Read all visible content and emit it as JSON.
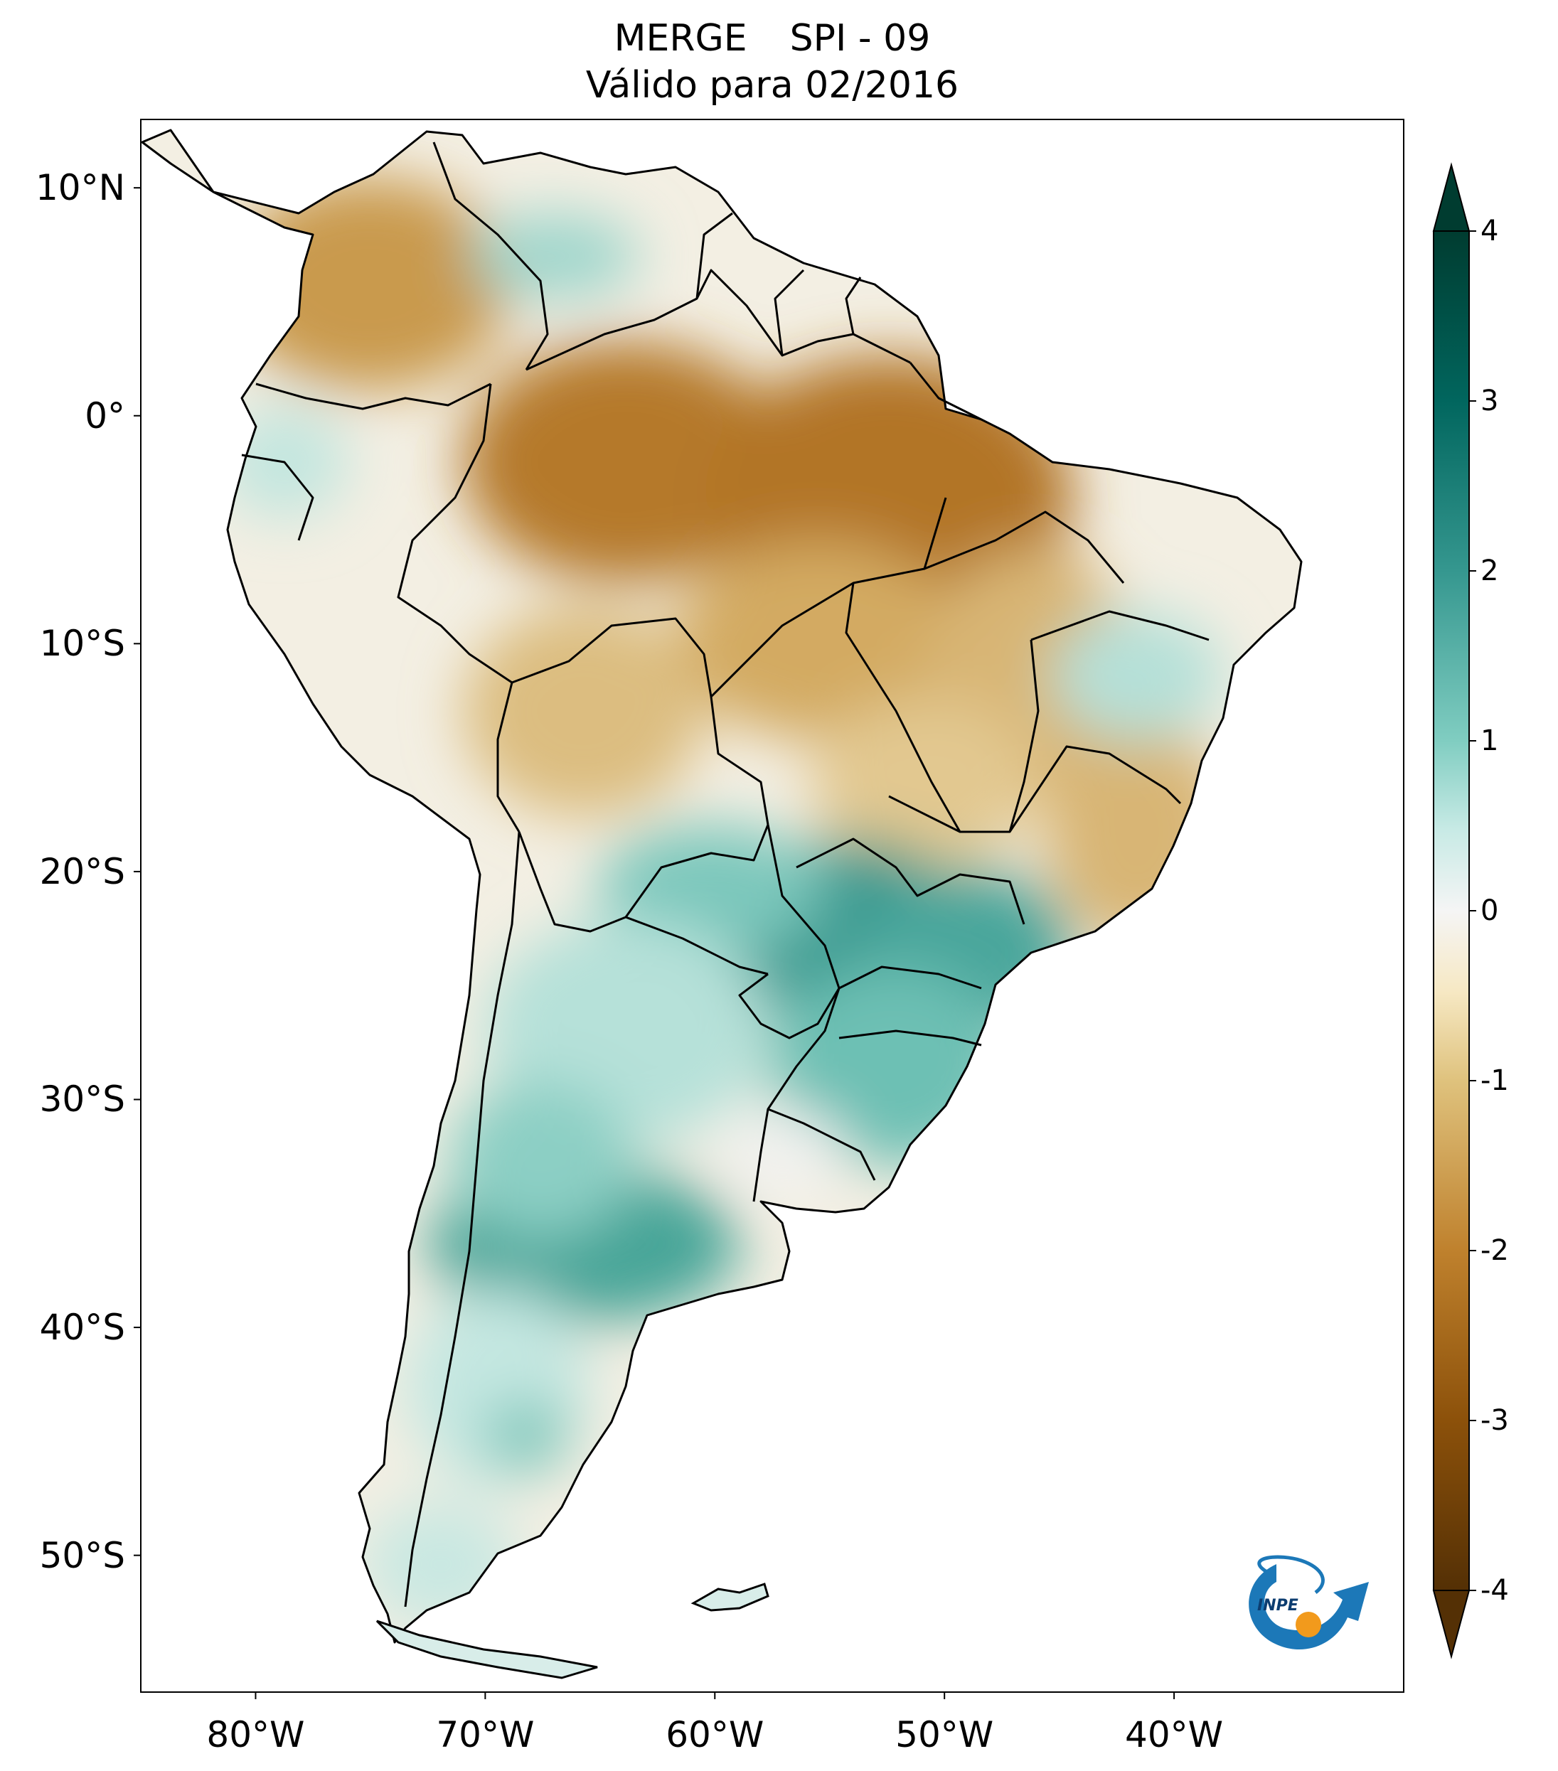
{
  "figure": {
    "title_line1_a": "MERGE",
    "title_line1_b": "SPI - 09",
    "title_line2": "Válido para 02/2016"
  },
  "map": {
    "region": "South America",
    "variable": "SPI - 09",
    "lon_range": [
      -85,
      -30
    ],
    "lat_range": [
      -56,
      13
    ],
    "lat_ticks": [
      {
        "value": 10,
        "label": "10°N"
      },
      {
        "value": 0,
        "label": "0°"
      },
      {
        "value": -10,
        "label": "10°S"
      },
      {
        "value": -20,
        "label": "20°S"
      },
      {
        "value": -30,
        "label": "30°S"
      },
      {
        "value": -40,
        "label": "40°S"
      },
      {
        "value": -50,
        "label": "50°S"
      }
    ],
    "lon_ticks": [
      {
        "value": -80,
        "label": "80°W"
      },
      {
        "value": -70,
        "label": "70°W"
      },
      {
        "value": -60,
        "label": "60°W"
      },
      {
        "value": -50,
        "label": "50°W"
      },
      {
        "value": -40,
        "label": "40°W"
      }
    ]
  },
  "colorbar": {
    "range": [
      -4,
      4
    ],
    "ticks": [
      {
        "value": 4,
        "label": "4"
      },
      {
        "value": 3,
        "label": "3"
      },
      {
        "value": 2,
        "label": "2"
      },
      {
        "value": 1,
        "label": "1"
      },
      {
        "value": 0,
        "label": "0"
      },
      {
        "value": -1,
        "label": "-1"
      },
      {
        "value": -2,
        "label": "-2"
      },
      {
        "value": -3,
        "label": "-3"
      },
      {
        "value": -4,
        "label": "-4"
      }
    ],
    "colors": {
      "wet_max": "#003c30",
      "wet_strong": "#01665e",
      "wet_mid": "#35978f",
      "wet_light": "#80cdc1",
      "wet_pale": "#c7eae5",
      "neutral": "#f5f5f5",
      "dry_pale": "#f6e8c3",
      "dry_light": "#dfc27d",
      "dry_mid": "#bf812d",
      "dry_strong": "#8c510a",
      "dry_max": "#543005"
    }
  },
  "logo": {
    "text": "INPE"
  }
}
